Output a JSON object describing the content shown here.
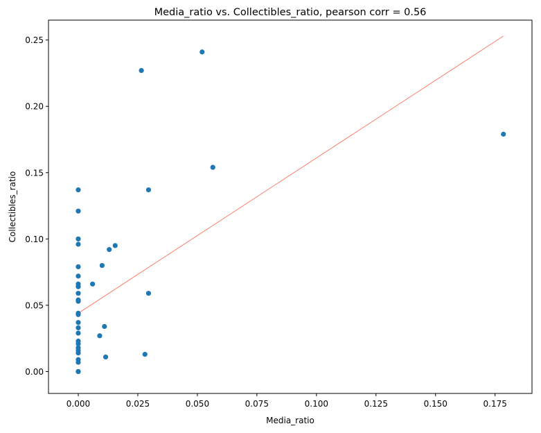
{
  "chart_data": {
    "type": "scatter",
    "title": "Media_ratio vs. Collectibles_ratio, pearson corr = 0.56",
    "xlabel": "Media_ratio",
    "ylabel": "Collectibles_ratio",
    "xlim": [
      -0.0125,
      0.1905
    ],
    "ylim": [
      -0.0165,
      0.265
    ],
    "xticks": [
      0.0,
      0.025,
      0.05,
      0.075,
      0.1,
      0.125,
      0.15,
      0.175
    ],
    "xtick_labels": [
      "0.000",
      "0.025",
      "0.050",
      "0.075",
      "0.100",
      "0.125",
      "0.150",
      "0.175"
    ],
    "yticks": [
      0.0,
      0.05,
      0.1,
      0.15,
      0.2,
      0.25
    ],
    "ytick_labels": [
      "0.00",
      "0.05",
      "0.10",
      "0.15",
      "0.20",
      "0.25"
    ],
    "grid": false,
    "point_color": "#1f77b4",
    "fit_line_color": "#ff6347",
    "fit_line": {
      "x": [
        0.0,
        0.1785
      ],
      "y": [
        0.044,
        0.253
      ]
    },
    "points": [
      {
        "x": 0.0,
        "y": 0.137
      },
      {
        "x": 0.0,
        "y": 0.121
      },
      {
        "x": 0.0,
        "y": 0.1
      },
      {
        "x": 0.0,
        "y": 0.096
      },
      {
        "x": 0.0,
        "y": 0.079
      },
      {
        "x": 0.0,
        "y": 0.072
      },
      {
        "x": 0.0,
        "y": 0.066
      },
      {
        "x": 0.0,
        "y": 0.064
      },
      {
        "x": 0.0,
        "y": 0.059
      },
      {
        "x": 0.0,
        "y": 0.054
      },
      {
        "x": 0.0,
        "y": 0.053
      },
      {
        "x": 0.0,
        "y": 0.044
      },
      {
        "x": 0.0,
        "y": 0.043
      },
      {
        "x": 0.0,
        "y": 0.037
      },
      {
        "x": 0.0,
        "y": 0.033
      },
      {
        "x": 0.0,
        "y": 0.029
      },
      {
        "x": 0.0,
        "y": 0.023
      },
      {
        "x": 0.0,
        "y": 0.021
      },
      {
        "x": 0.0,
        "y": 0.018
      },
      {
        "x": 0.0,
        "y": 0.016
      },
      {
        "x": 0.0,
        "y": 0.014
      },
      {
        "x": 0.0,
        "y": 0.009
      },
      {
        "x": 0.0,
        "y": 0.007
      },
      {
        "x": 0.0,
        "y": 0.0
      },
      {
        "x": 0.0,
        "y": 0.0
      },
      {
        "x": 0.006,
        "y": 0.066
      },
      {
        "x": 0.009,
        "y": 0.027
      },
      {
        "x": 0.01,
        "y": 0.08
      },
      {
        "x": 0.011,
        "y": 0.034
      },
      {
        "x": 0.0115,
        "y": 0.011
      },
      {
        "x": 0.013,
        "y": 0.092
      },
      {
        "x": 0.0155,
        "y": 0.095
      },
      {
        "x": 0.0265,
        "y": 0.227
      },
      {
        "x": 0.028,
        "y": 0.013
      },
      {
        "x": 0.0295,
        "y": 0.137
      },
      {
        "x": 0.0295,
        "y": 0.059
      },
      {
        "x": 0.052,
        "y": 0.241
      },
      {
        "x": 0.0565,
        "y": 0.154
      },
      {
        "x": 0.1785,
        "y": 0.179
      }
    ]
  }
}
